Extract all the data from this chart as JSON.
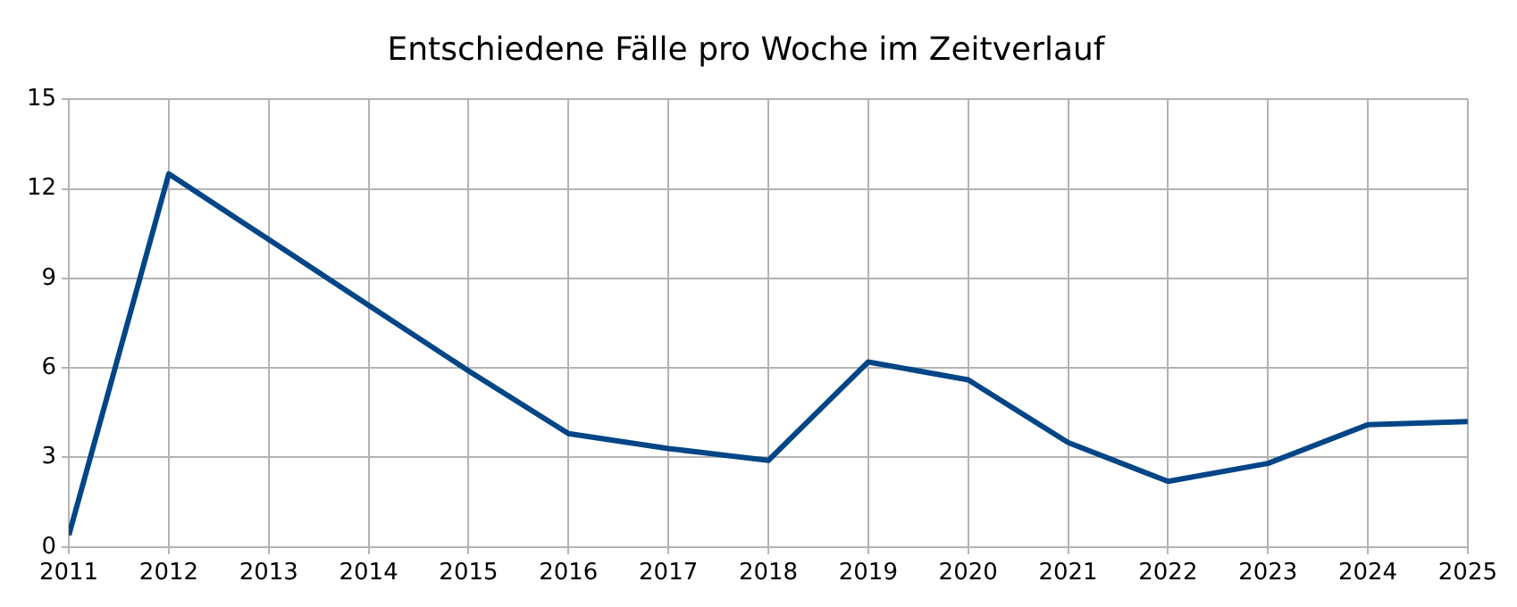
{
  "chart_data": {
    "type": "line",
    "title": "Entschiedene Fälle pro Woche im Zeitverlauf",
    "x": [
      2011,
      2012,
      2013,
      2014,
      2015,
      2016,
      2017,
      2018,
      2019,
      2020,
      2021,
      2022,
      2023,
      2024,
      2025
    ],
    "series": [
      {
        "color": "#004586",
        "values": [
          0.4,
          12.5,
          10.3,
          8.1,
          5.9,
          3.8,
          3.3,
          2.9,
          6.2,
          5.6,
          3.5,
          2.2,
          2.8,
          4.1,
          4.2
        ]
      }
    ],
    "xlim": [
      2011,
      2025
    ],
    "xticks": [
      2011,
      2012,
      2013,
      2014,
      2015,
      2016,
      2017,
      2018,
      2019,
      2020,
      2021,
      2022,
      2023,
      2024,
      2025
    ],
    "ylim": [
      0,
      15
    ],
    "yticks": [
      0,
      3,
      6,
      9,
      12,
      15
    ],
    "grid": true,
    "marker": "none",
    "line_style": "solid"
  }
}
